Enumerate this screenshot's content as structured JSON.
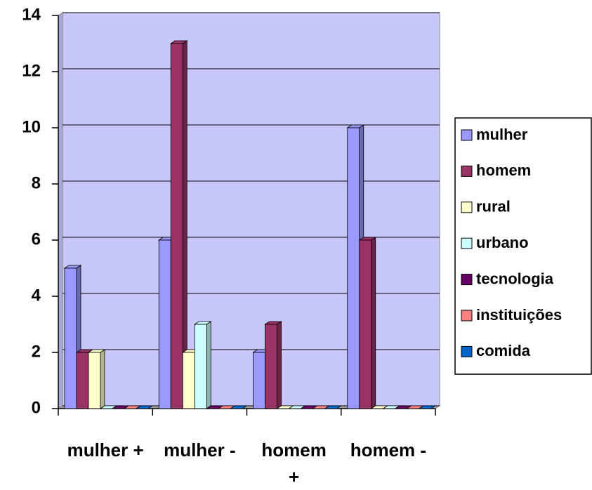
{
  "chart_data": {
    "type": "bar",
    "categories": [
      "mulher +",
      "mulher -",
      "homem +",
      "homem -"
    ],
    "series": [
      {
        "name": "mulher",
        "color": "#9999ff",
        "values": [
          5,
          6,
          2,
          10
        ]
      },
      {
        "name": "homem",
        "color": "#993366",
        "values": [
          2,
          13,
          3,
          6
        ]
      },
      {
        "name": "rural",
        "color": "#ffffcc",
        "values": [
          2,
          2,
          0,
          0
        ]
      },
      {
        "name": "urbano",
        "color": "#ccffff",
        "values": [
          0,
          3,
          0,
          0
        ]
      },
      {
        "name": "tecnologia",
        "color": "#660066",
        "values": [
          0,
          0,
          0,
          0
        ]
      },
      {
        "name": "instituições",
        "color": "#ff8080",
        "values": [
          0,
          0,
          0,
          0
        ]
      },
      {
        "name": "comida",
        "color": "#0066cc",
        "values": [
          0,
          0,
          0,
          0
        ]
      }
    ],
    "ylim": [
      0,
      14
    ],
    "yticks": [
      0,
      2,
      4,
      6,
      8,
      10,
      12,
      14
    ],
    "grid": true,
    "legend": "right"
  }
}
